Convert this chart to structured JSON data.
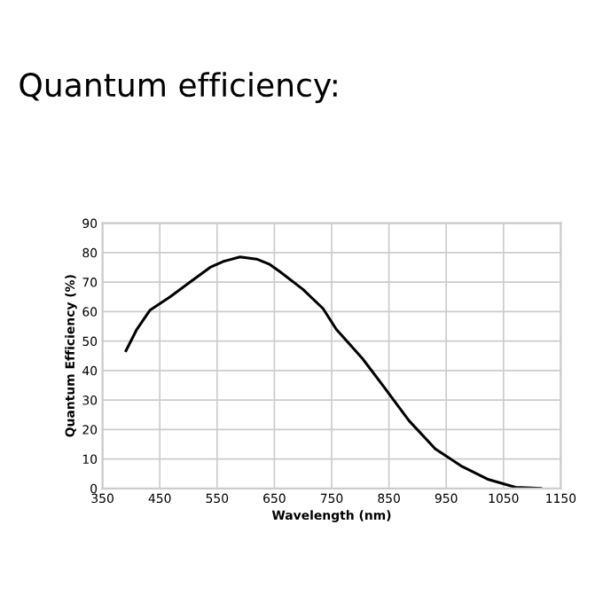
{
  "chart_data": {
    "type": "line",
    "title": "Quantum efficiency:",
    "xlabel": "Wavelength (nm)",
    "ylabel": "Quantum Efficiency (%)",
    "x": [
      391,
      410,
      433,
      468,
      503,
      538,
      561,
      590,
      619,
      642,
      660,
      700,
      735,
      758,
      804,
      839,
      885,
      931,
      978,
      1024,
      1071,
      1115
    ],
    "series": [
      {
        "color": "#000000",
        "values": [
          46.7,
          54,
          60.5,
          65,
          70,
          75,
          77,
          78.5,
          77.8,
          76,
          73.5,
          67.5,
          61,
          54,
          44,
          35,
          23,
          13.4,
          7.4,
          3,
          0.4,
          0
        ]
      }
    ],
    "xlim": [
      350,
      1150
    ],
    "xticks": [
      350,
      450,
      550,
      650,
      750,
      850,
      950,
      1050,
      1150
    ],
    "ylim": [
      0,
      90
    ],
    "yticks": [
      0,
      10,
      20,
      30,
      40,
      50,
      60,
      70,
      80,
      90
    ],
    "grid": true,
    "marker": "none",
    "line_style": "solid"
  }
}
